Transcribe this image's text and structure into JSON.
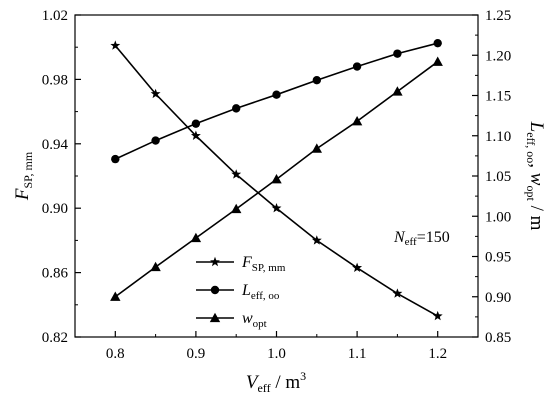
{
  "chart_data": {
    "type": "line",
    "x": [
      0.8,
      0.85,
      0.9,
      0.95,
      1.0,
      1.05,
      1.1,
      1.15,
      1.2
    ],
    "xlim": [
      0.75,
      1.25
    ],
    "x_ticks": [
      "0.8",
      "0.9",
      "1.0",
      "1.1",
      "1.2"
    ],
    "ylim_left": [
      0.82,
      1.02
    ],
    "y_ticks_left": [
      "0.82",
      "0.86",
      "0.90",
      "0.94",
      "0.98",
      "1.02"
    ],
    "ylim_right": [
      0.85,
      1.25
    ],
    "y_ticks_right": [
      "0.85",
      "0.90",
      "0.95",
      "1.00",
      "1.05",
      "1.10",
      "1.15",
      "1.20",
      "1.25"
    ],
    "xlabel": {
      "main": "V",
      "sub": "eff",
      "rest": " / m",
      "sup": "3"
    },
    "ylabel_left": {
      "main": "F",
      "sub": "SP, mm"
    },
    "ylabel_right": {
      "main1": "L",
      "sub1": "eff, oo",
      "sep": ", ",
      "main2": "w",
      "sub2": "opt",
      "rest": " / m"
    },
    "annotation": {
      "main": "N",
      "sub": "eff",
      "rest": "=150"
    },
    "legend_position": "bottom-center",
    "grid": false,
    "series": [
      {
        "name": "F",
        "name_sub": "SP, mm",
        "marker": "star",
        "axis": "left",
        "values": [
          1.001,
          0.971,
          0.945,
          0.921,
          0.9,
          0.88,
          0.863,
          0.847,
          0.833
        ]
      },
      {
        "name": "L",
        "name_sub": "eff, oo",
        "marker": "circle",
        "axis": "right",
        "values": [
          1.071,
          1.094,
          1.115,
          1.134,
          1.151,
          1.169,
          1.186,
          1.202,
          1.215
        ]
      },
      {
        "name": "w",
        "name_sub": "opt",
        "marker": "triangle",
        "axis": "right",
        "values": [
          0.9,
          0.937,
          0.973,
          1.009,
          1.046,
          1.084,
          1.118,
          1.155,
          1.192
        ]
      }
    ]
  }
}
